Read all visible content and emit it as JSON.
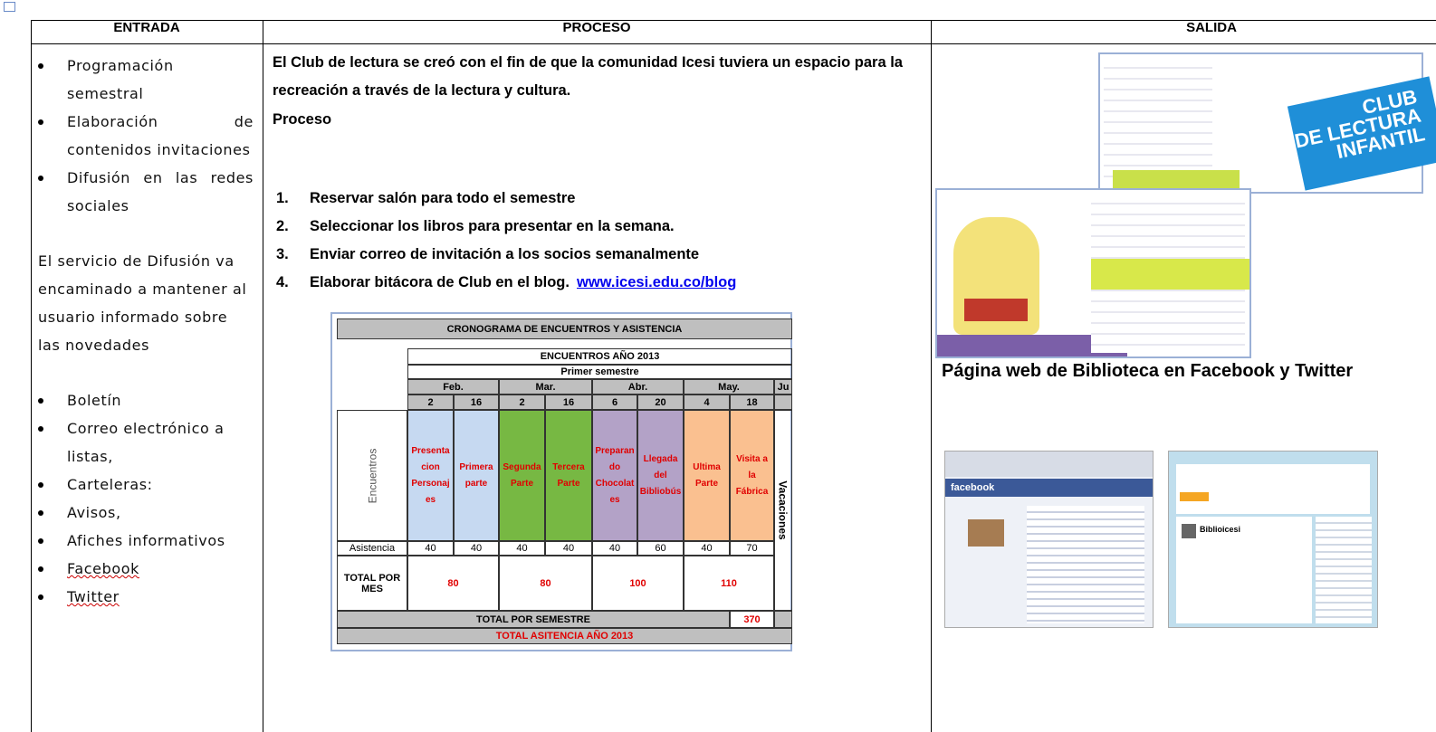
{
  "header": {
    "columns": [
      "ENTRADA",
      "PROCESO",
      "SALIDA"
    ]
  },
  "entrada": {
    "items": [
      "Programación semestral",
      "Elaboración de contenidos invitaciones",
      "Difusión en las redes sociales"
    ],
    "paragraph": "El servicio de Difusión va encaminado a mantener al usuario informado sobre las novedades",
    "channels": [
      "Boletín",
      "Correo electrónico a listas,",
      "Carteleras:",
      "Avisos,",
      "Afiches informativos",
      "Facebook",
      "Twitter"
    ]
  },
  "proceso": {
    "intro": "El Club de lectura se creó con el fin de que la comunidad Icesi tuviera un espacio para la recreación a través de la lectura y cultura.",
    "heading": "Proceso",
    "steps": [
      {
        "number": "1.",
        "text": "Reservar salón para todo el semestre"
      },
      {
        "number": "2.",
        "text": "Seleccionar los libros para presentar en la semana."
      },
      {
        "number": "3.",
        "text": "Enviar correo de invitación a los socios semanalmente"
      },
      {
        "number": "4.",
        "text": "Elaborar bitácora de Club en el blog.",
        "link": "www.icesi.edu.co/blog"
      }
    ],
    "schedule": {
      "title": "CRONOGRAMA DE ENCUENTROS Y ASISTENCIA",
      "subtitle": "ENCUENTROS AÑO 2013",
      "semester": "Primer semestre",
      "months": [
        "Feb.",
        "Mar.",
        "Abr.",
        "May.",
        "Ju"
      ],
      "days": [
        2,
        16,
        2,
        16,
        6,
        20,
        4,
        18
      ],
      "row_label": "Encuentros",
      "activities": [
        "Presentacion Personajes",
        "Primera parte",
        "Segunda Parte",
        "Tercera Parte",
        "Preparando Chocolates",
        "Llegada del Bibliobús",
        "Ultima Parte",
        "Visita a la Fábrica"
      ],
      "side_label": "Vacaciones",
      "attendance_label": "Asistencia",
      "attendance": [
        40,
        40,
        40,
        40,
        40,
        60,
        40,
        70
      ],
      "monthly_total_label": "TOTAL POR MES",
      "monthly_totals": [
        80,
        80,
        100,
        110
      ],
      "semester_total_label": "TOTAL POR SEMESTRE",
      "semester_total": 370,
      "year_total_label": "TOTAL ASITENCIA AÑO 2013"
    }
  },
  "salida": {
    "flyer": {
      "title": "CLUB",
      "subtitle": "DE LECTURA",
      "subtitle2": "INFANTIL"
    },
    "caption": "Página web de Biblioteca en Facebook y Twitter",
    "screens": [
      "facebook",
      "Biblioicesi"
    ]
  }
}
